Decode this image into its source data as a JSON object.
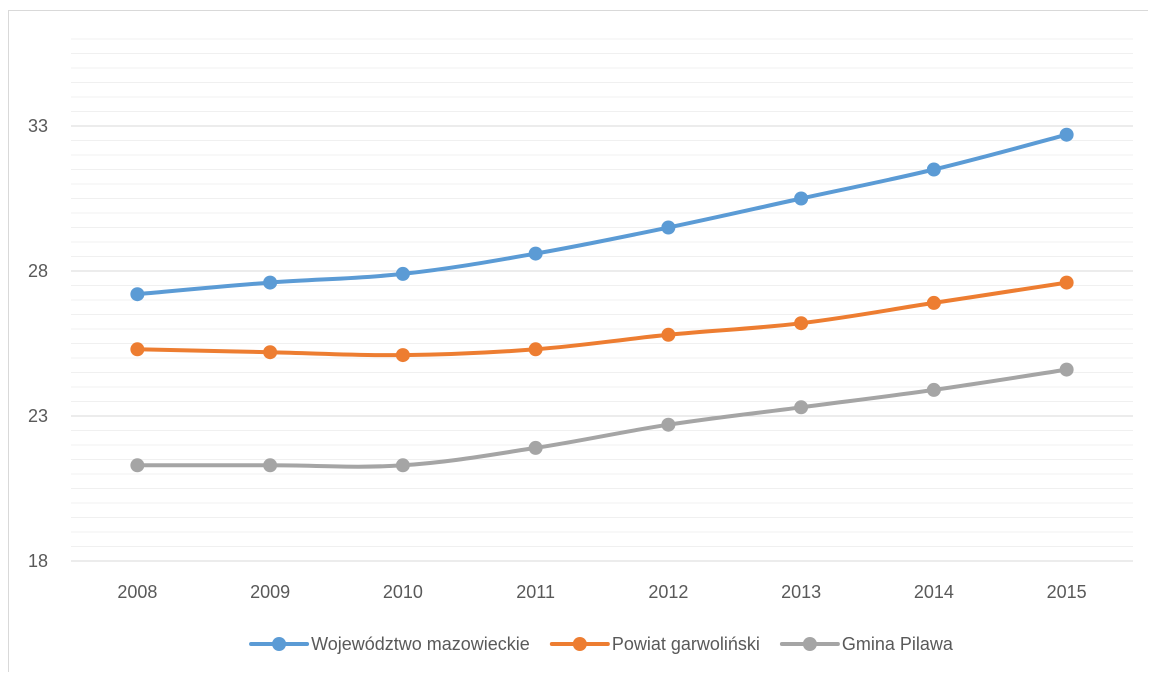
{
  "chart_data": {
    "type": "line",
    "title": "",
    "xlabel": "",
    "ylabel": "",
    "categories": [
      "2008",
      "2009",
      "2010",
      "2011",
      "2012",
      "2013",
      "2014",
      "2015"
    ],
    "ylim": [
      18,
      36
    ],
    "yticks": [
      "18",
      "23",
      "28",
      "33"
    ],
    "minor_grid_step": 0.5,
    "grid": true,
    "legend_position": "bottom",
    "series": [
      {
        "name": "Województwo mazowieckie",
        "color": "#5b9bd5",
        "values": [
          27.2,
          27.6,
          27.9,
          28.6,
          29.5,
          30.5,
          31.5,
          32.7
        ]
      },
      {
        "name": "Powiat garwoliński",
        "color": "#ed7d31",
        "values": [
          25.3,
          25.2,
          25.1,
          25.3,
          25.8,
          26.2,
          26.9,
          27.6
        ]
      },
      {
        "name": "Gmina Pilawa",
        "color": "#a5a5a5",
        "values": [
          21.3,
          21.3,
          21.3,
          21.9,
          22.7,
          23.3,
          23.9,
          24.6
        ]
      }
    ]
  }
}
